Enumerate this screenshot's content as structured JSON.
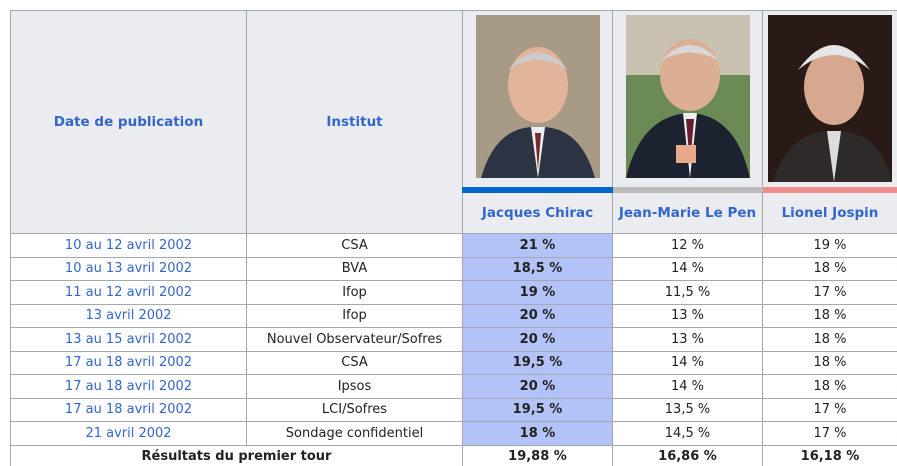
{
  "header": {
    "date": "Date de publication",
    "institute": "Institut",
    "candidates": [
      "Jacques Chirac",
      "Jean-Marie Le Pen",
      "Lionel Jospin"
    ]
  },
  "rows": [
    {
      "date": "10 au 12 avril 2002",
      "institute": "CSA",
      "values": [
        "21 %",
        "12 %",
        "19 %"
      ]
    },
    {
      "date": "10 au 13 avril 2002",
      "institute": "BVA",
      "values": [
        "18,5 %",
        "14 %",
        "18 %"
      ]
    },
    {
      "date": "11 au 12 avril 2002",
      "institute": "Ifop",
      "values": [
        "19 %",
        "11,5 %",
        "17 %"
      ]
    },
    {
      "date": "13 avril 2002",
      "institute": "Ifop",
      "values": [
        "20 %",
        "13 %",
        "18 %"
      ]
    },
    {
      "date": "13 au 15 avril 2002",
      "institute": "Nouvel Observateur/Sofres",
      "values": [
        "20 %",
        "13 %",
        "18 %"
      ]
    },
    {
      "date": "17 au 18 avril 2002",
      "institute": "CSA",
      "values": [
        "19,5 %",
        "14 %",
        "18 %"
      ]
    },
    {
      "date": "17 au 18 avril 2002",
      "institute": "Ipsos",
      "values": [
        "20 %",
        "14 %",
        "18 %"
      ]
    },
    {
      "date": "17 au 18 avril 2002",
      "institute": "LCI/Sofres",
      "values": [
        "19,5 %",
        "13,5 %",
        "17 %"
      ]
    },
    {
      "date": "21 avril 2002",
      "institute": "Sondage confidentiel",
      "values": [
        "18 %",
        "14,5 %",
        "17 %"
      ]
    }
  ],
  "results": {
    "label": "Résultats du premier tour",
    "values": [
      "19,88 %",
      "16,86 %",
      "16,18 %"
    ]
  }
}
